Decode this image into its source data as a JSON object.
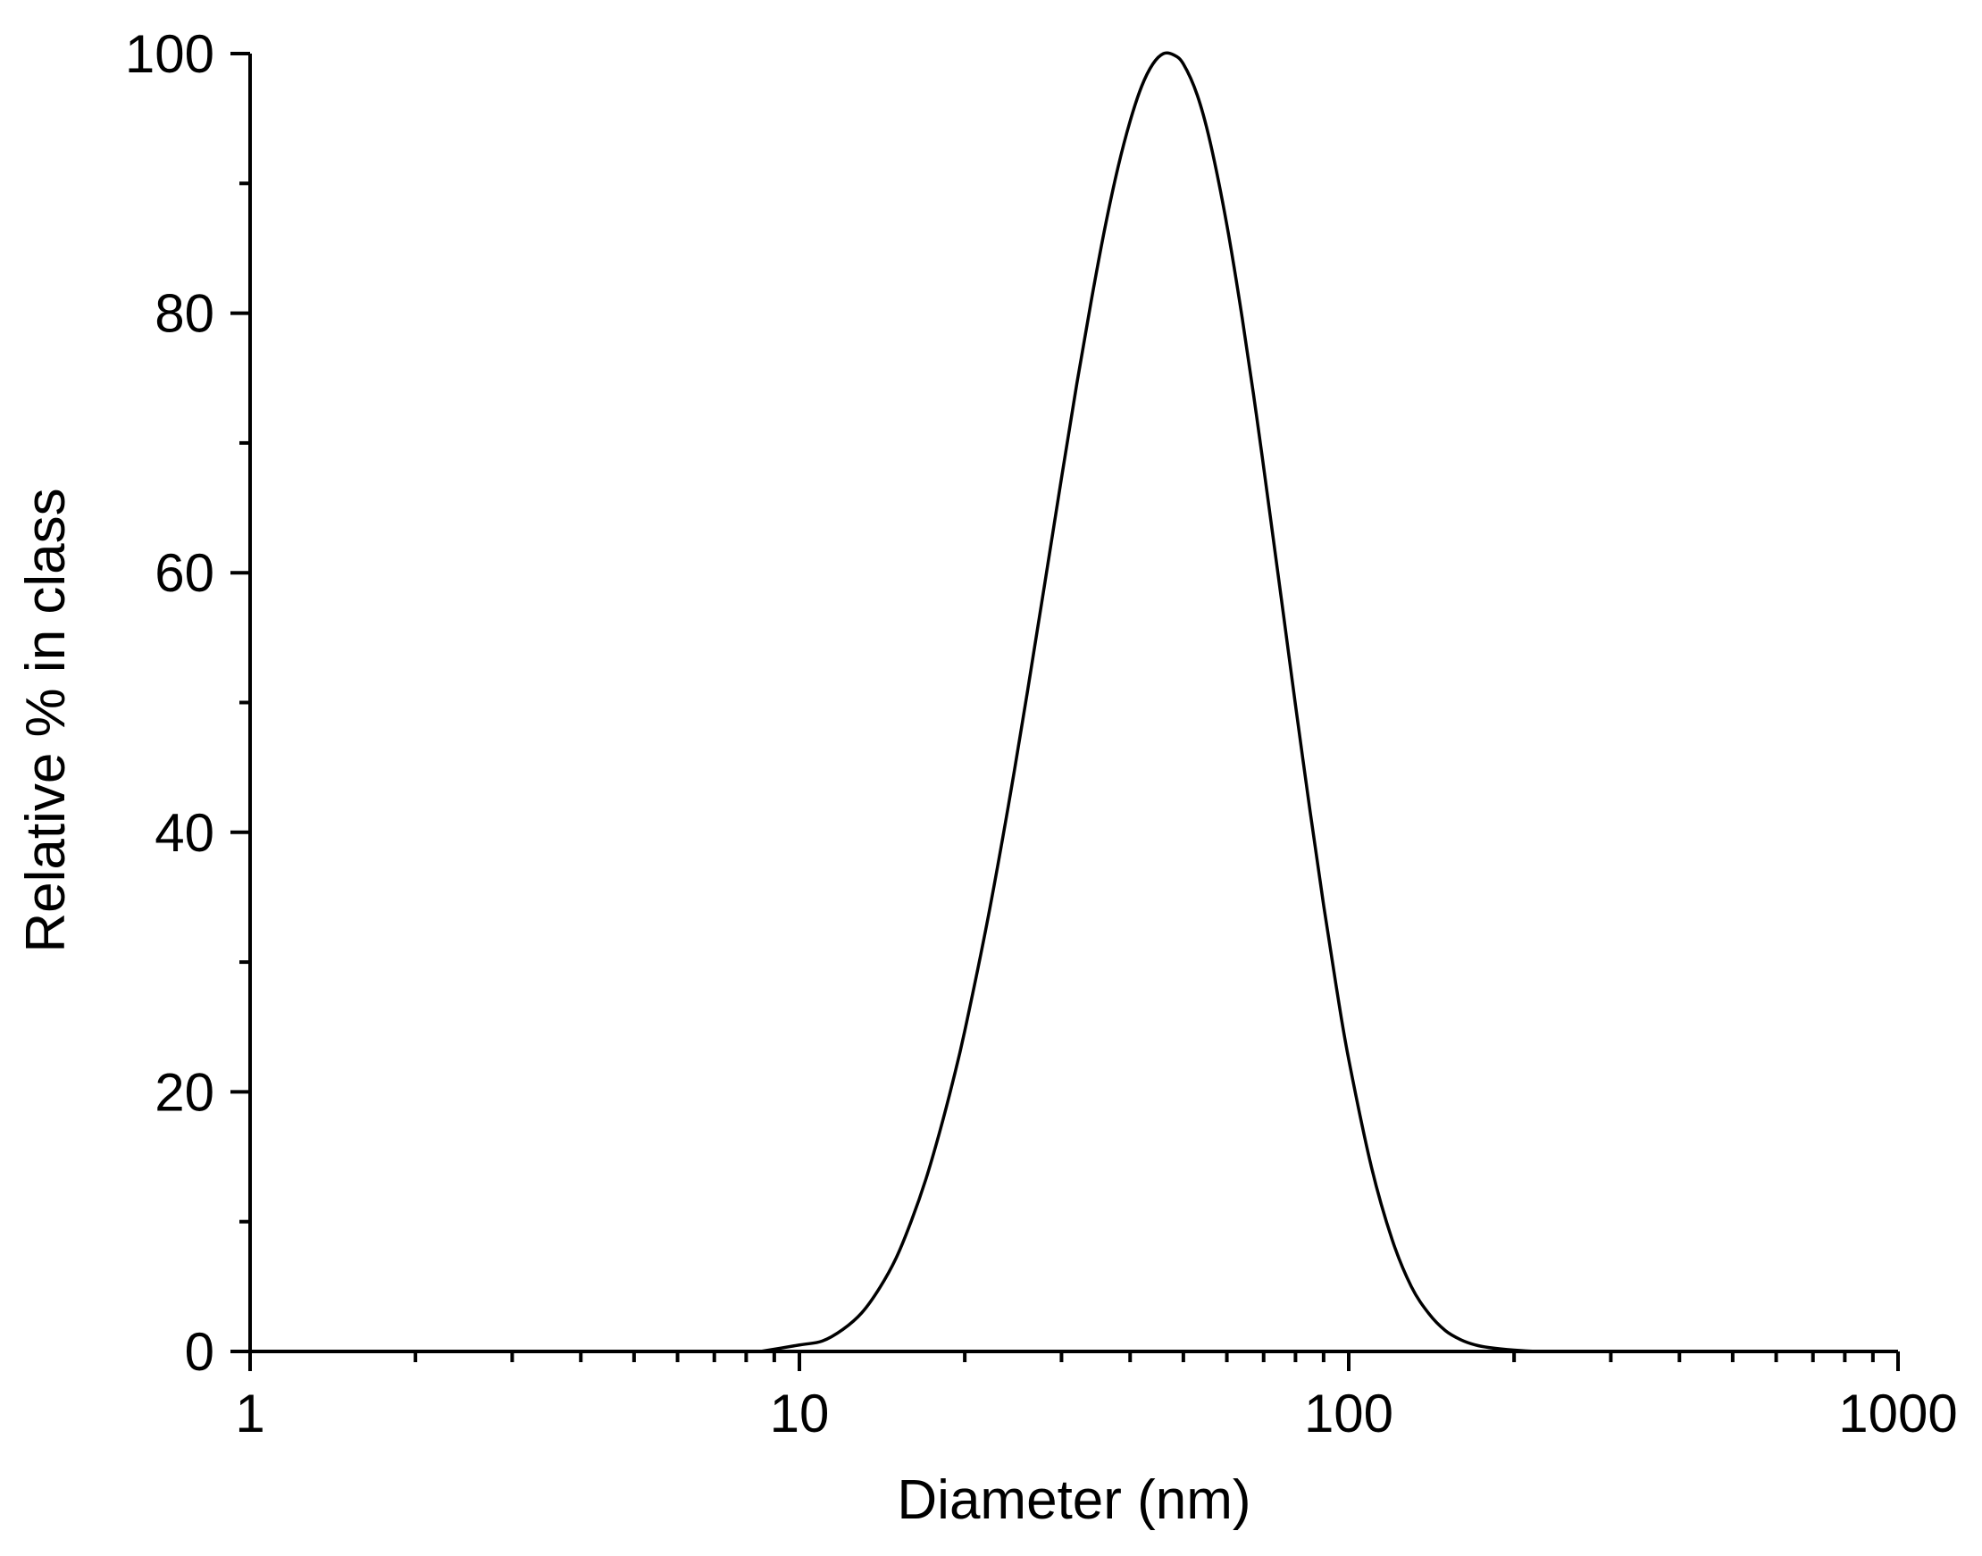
{
  "chart_data": {
    "type": "line",
    "title": "",
    "xlabel": "Diameter (nm)",
    "ylabel": "Relative % in class",
    "xscale": "log",
    "xlim": [
      1,
      1000
    ],
    "ylim": [
      0,
      100
    ],
    "grid": false,
    "legend": "none",
    "x_ticks": [
      "1",
      "10",
      "100",
      "1000"
    ],
    "y_ticks": [
      "0",
      "20",
      "40",
      "60",
      "80",
      "100"
    ],
    "series": [
      {
        "color": "#000000",
        "x": [
          8.5,
          10,
          11,
          12,
          13,
          14,
          15,
          16,
          17,
          18,
          19,
          20,
          22,
          24,
          26,
          28,
          30,
          32,
          34,
          36,
          38,
          40,
          42,
          44,
          46,
          48,
          50,
          53,
          56,
          60,
          64,
          68,
          72,
          76,
          80,
          85,
          90,
          95,
          100,
          110,
          120,
          130,
          140,
          150,
          160,
          170,
          180,
          200,
          220,
          235
        ],
        "y": [
          0.0,
          0.5,
          0.8,
          1.7,
          3.0,
          4.9,
          7.2,
          10.1,
          13.3,
          16.9,
          20.7,
          24.7,
          33.2,
          42.0,
          50.8,
          59.3,
          67.3,
          74.6,
          81.0,
          86.6,
          91.2,
          94.8,
          97.5,
          99.2,
          100.0,
          99.9,
          99.2,
          96.8,
          93.1,
          86.8,
          79.6,
          72.0,
          64.3,
          56.9,
          49.8,
          41.7,
          34.4,
          28.0,
          22.5,
          14.2,
          8.6,
          5.0,
          2.9,
          1.6,
          0.9,
          0.5,
          0.3,
          0.1,
          0.0,
          0.0
        ]
      }
    ]
  }
}
